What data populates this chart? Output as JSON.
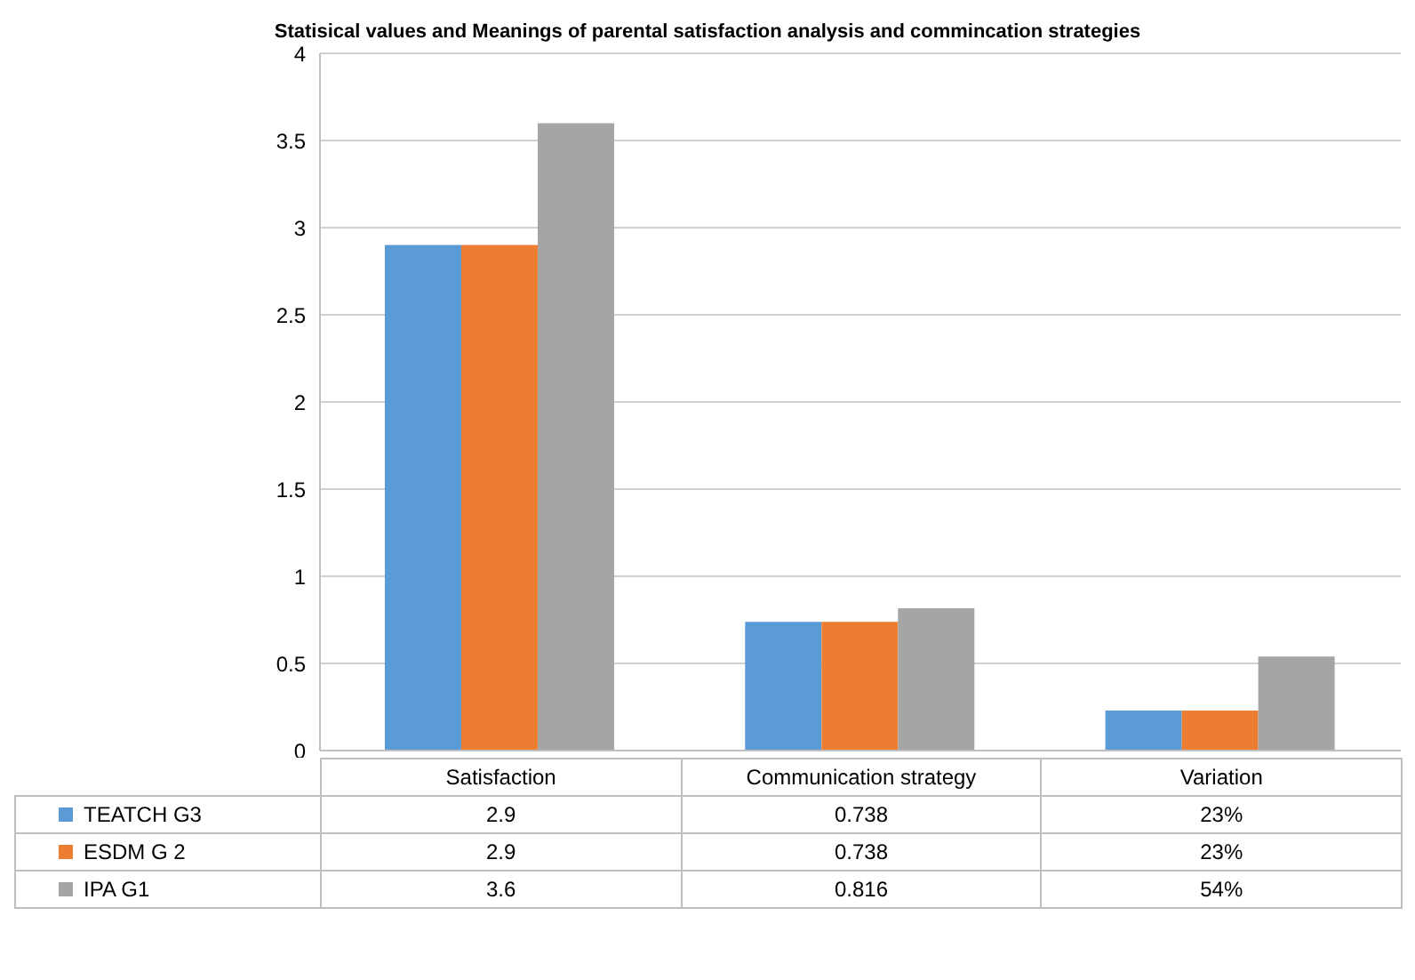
{
  "chart_data": {
    "type": "bar",
    "title": "Statisical values and Meanings of parental satisfaction analysis and commincation strategies",
    "categories": [
      "Satisfaction",
      "Communication strategy",
      "Variation"
    ],
    "series": [
      {
        "name": "TEATCH G3",
        "color": "#5b9bd5",
        "values": [
          2.9,
          0.738,
          0.23
        ],
        "value_labels": [
          "2.9",
          "0.738",
          "23%"
        ]
      },
      {
        "name": "ESDM G 2",
        "color": "#ed7d31",
        "values": [
          2.9,
          0.738,
          0.23
        ],
        "value_labels": [
          "2.9",
          "0.738",
          "23%"
        ]
      },
      {
        "name": "IPA G1",
        "color": "#a5a5a5",
        "values": [
          3.6,
          0.816,
          0.54
        ],
        "value_labels": [
          "3.6",
          "0.816",
          "54%"
        ]
      }
    ],
    "ylim": [
      0,
      4
    ],
    "yticks": [
      0,
      0.5,
      1,
      1.5,
      2,
      2.5,
      3,
      3.5,
      4
    ],
    "grid": "y",
    "legend": "bottom"
  }
}
